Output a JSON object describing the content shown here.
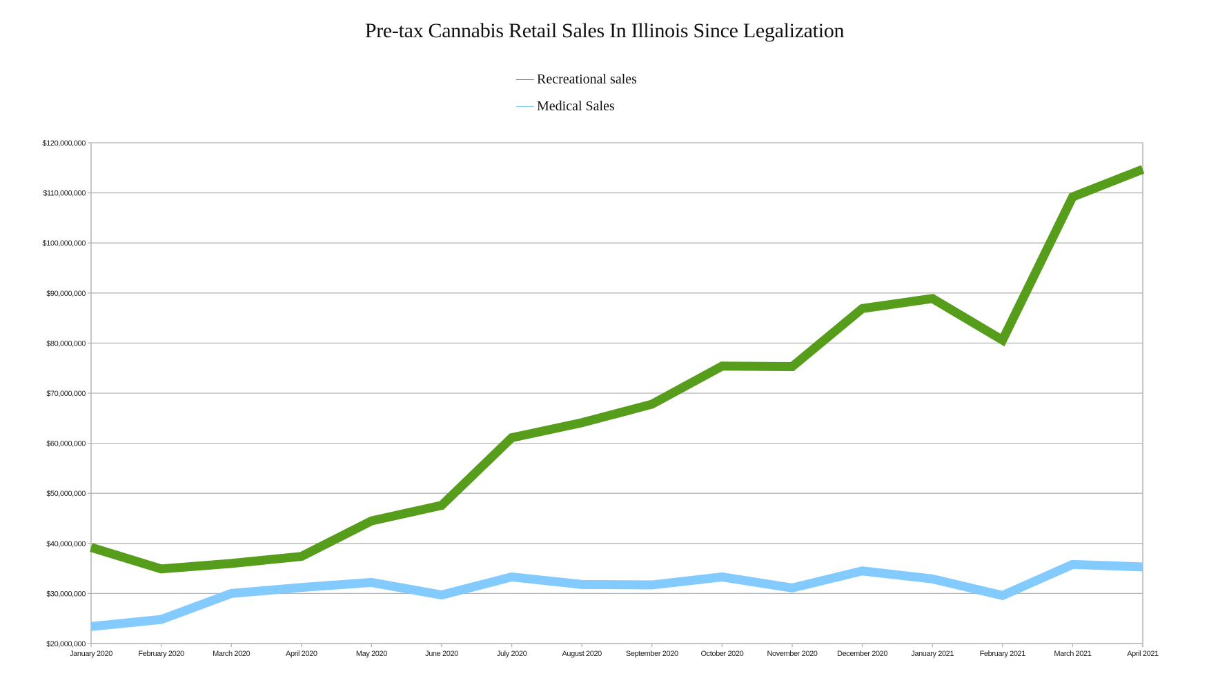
{
  "chart_data": {
    "type": "line",
    "title": "Pre-tax Cannabis Retail Sales In Illinois Since Legalization",
    "xlabel": "",
    "ylabel": "",
    "categories": [
      "January 2020",
      "February 2020",
      "March 2020",
      "April 2020",
      "May 2020",
      "June 2020",
      "July 2020",
      "August 2020",
      "September 2020",
      "October 2020",
      "November 2020",
      "December 2020",
      "January 2021",
      "February 2021",
      "March 2021",
      "April 2021"
    ],
    "ylim": [
      20000000,
      120000000
    ],
    "yticks": [
      20000000,
      30000000,
      40000000,
      50000000,
      60000000,
      70000000,
      80000000,
      90000000,
      100000000,
      110000000,
      120000000
    ],
    "ytick_labels": [
      "$20,000,000",
      "$30,000,000",
      "$40,000,000",
      "$50,000,000",
      "$60,000,000",
      "$70,000,000",
      "$80,000,000",
      "$90,000,000",
      "$100,000,000",
      "$110,000,000",
      "$120,000,000"
    ],
    "grid": true,
    "legend_position": "top-center",
    "series": [
      {
        "name": "Recreational sales",
        "color": "#579d1c",
        "values": [
          39200000,
          34900000,
          36000000,
          37400000,
          44500000,
          47600000,
          61100000,
          64100000,
          67800000,
          75400000,
          75300000,
          86900000,
          88900000,
          80600000,
          109200000,
          114700000
        ]
      },
      {
        "name": "Medical Sales",
        "color": "#83caff",
        "values": [
          23400000,
          24800000,
          30000000,
          31200000,
          32200000,
          29700000,
          33300000,
          31800000,
          31700000,
          33300000,
          31100000,
          34500000,
          32900000,
          29600000,
          35800000,
          35300000
        ]
      }
    ]
  },
  "colors": {
    "grid": "#b3b3b3",
    "axis": "#b3b3b3",
    "text": "#222222"
  }
}
